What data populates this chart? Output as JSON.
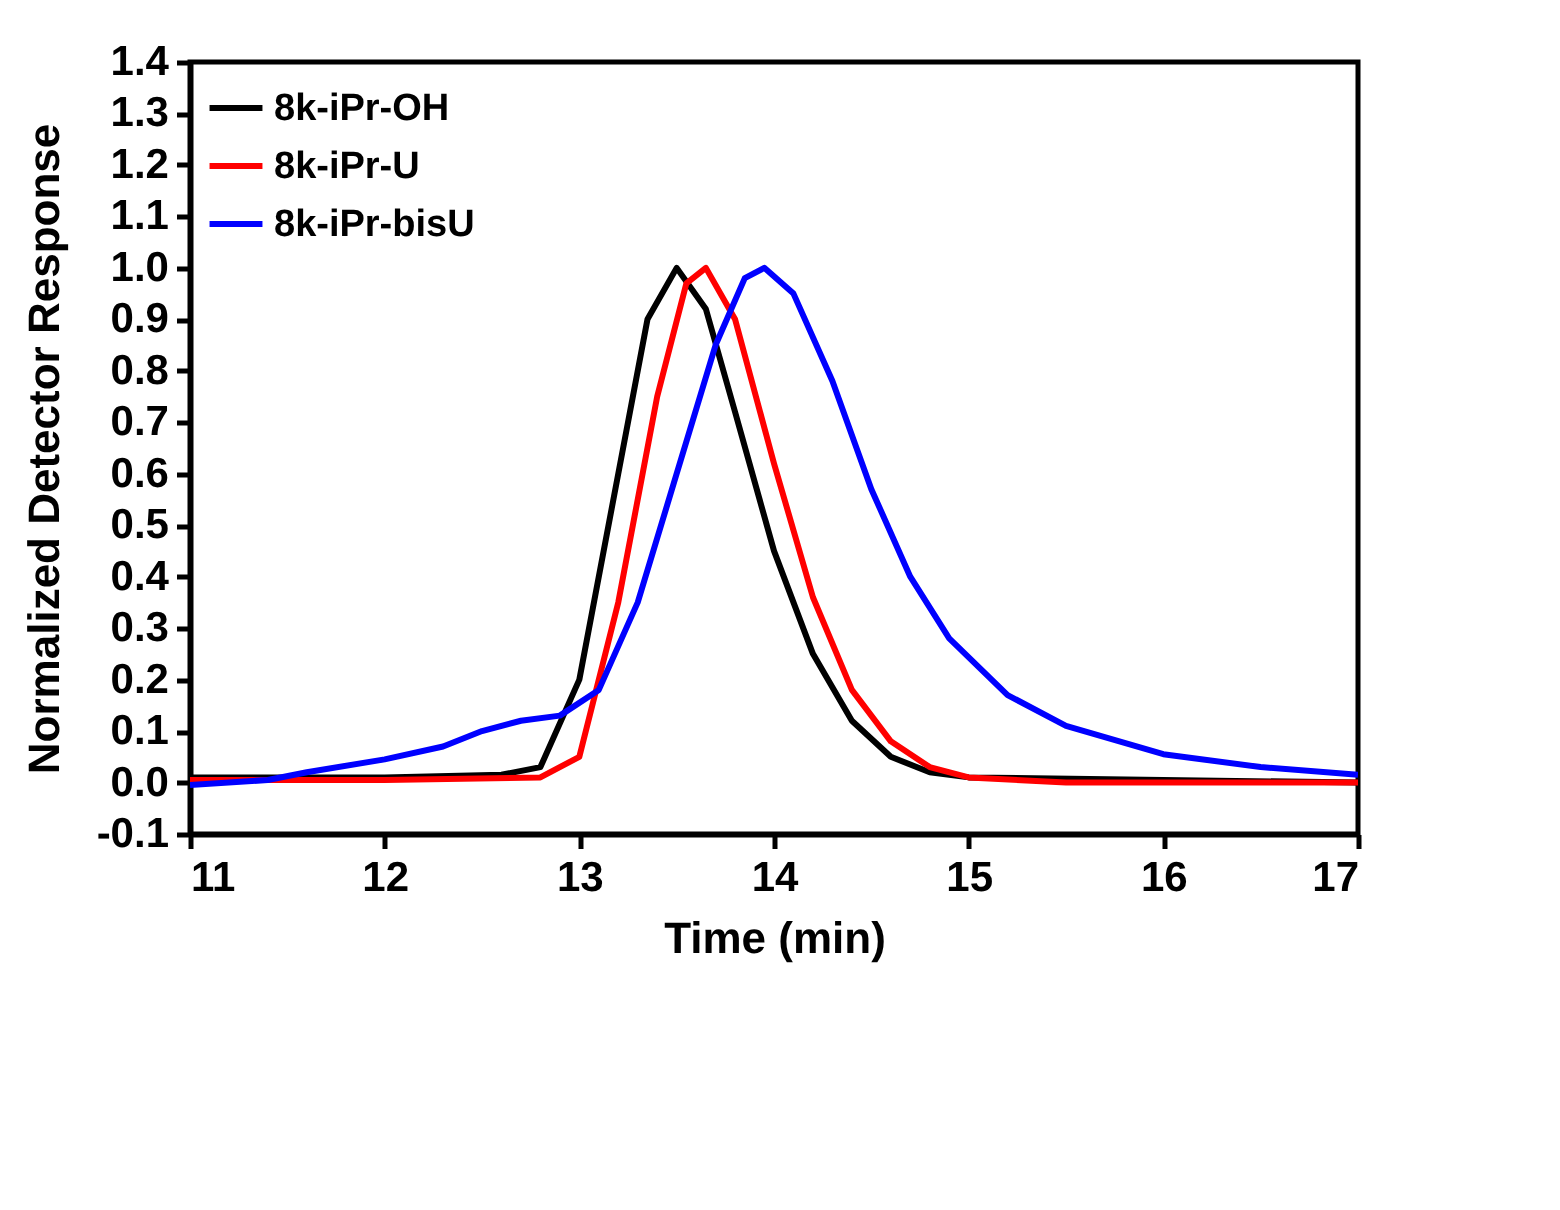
{
  "chart_data": {
    "type": "line",
    "xlabel": "Time (min)",
    "ylabel": "Normalized Detector Response",
    "xlim": [
      11,
      17
    ],
    "ylim": [
      -0.1,
      1.4
    ],
    "xticks": [
      11,
      12,
      13,
      14,
      15,
      16,
      17
    ],
    "yticks": [
      {
        "value": -0.1,
        "label": "-0.1"
      },
      {
        "value": 0,
        "label": "0.0"
      },
      {
        "value": 0.1,
        "label": "0.1"
      },
      {
        "value": 0.2,
        "label": "0.2"
      },
      {
        "value": 0.3,
        "label": "0.3"
      },
      {
        "value": 0.4,
        "label": "0.4"
      },
      {
        "value": 0.5,
        "label": "0.5"
      },
      {
        "value": 0.6,
        "label": "0.6"
      },
      {
        "value": 0.7,
        "label": "0.7"
      },
      {
        "value": 0.8,
        "label": "0.8"
      },
      {
        "value": 0.9,
        "label": "0.9"
      },
      {
        "value": 1,
        "label": "1.0"
      },
      {
        "value": 1.1,
        "label": "1.1"
      },
      {
        "value": 1.2,
        "label": "1.2"
      },
      {
        "value": 1.3,
        "label": "1.3"
      },
      {
        "value": 1.4,
        "label": "1.4"
      }
    ],
    "grid": false,
    "legend": "top left",
    "line_style": "solid",
    "marker": "none",
    "series": [
      {
        "name": "8k-iPr-OH",
        "color": "#000000",
        "x": [
          11,
          12,
          12.6,
          12.8,
          13,
          13.2,
          13.35,
          13.5,
          13.65,
          13.8,
          14,
          14.2,
          14.4,
          14.6,
          14.8,
          15,
          16,
          17
        ],
        "values": [
          0.01,
          0.01,
          0.015,
          0.03,
          0.2,
          0.6,
          0.9,
          1,
          0.92,
          0.72,
          0.45,
          0.25,
          0.12,
          0.05,
          0.02,
          0.01,
          0.005,
          0
        ]
      },
      {
        "name": "8k-iPr-U",
        "color": "#ff0000",
        "x": [
          11,
          12,
          12.8,
          13,
          13.2,
          13.4,
          13.55,
          13.65,
          13.8,
          14,
          14.2,
          14.4,
          14.6,
          14.8,
          15,
          15.5,
          17
        ],
        "values": [
          0.005,
          0.005,
          0.01,
          0.05,
          0.35,
          0.75,
          0.97,
          1,
          0.9,
          0.62,
          0.36,
          0.18,
          0.08,
          0.03,
          0.01,
          0,
          0
        ]
      },
      {
        "name": "8k-iPr-bisU",
        "color": "#0000ff",
        "x": [
          11,
          11.4,
          11.6,
          12,
          12.3,
          12.5,
          12.7,
          12.9,
          13.1,
          13.3,
          13.5,
          13.7,
          13.85,
          13.95,
          14.1,
          14.3,
          14.5,
          14.7,
          14.9,
          15.2,
          15.5,
          16,
          16.5,
          17
        ],
        "values": [
          -0.005,
          0.005,
          0.02,
          0.045,
          0.07,
          0.1,
          0.12,
          0.13,
          0.18,
          0.35,
          0.6,
          0.85,
          0.98,
          1,
          0.95,
          0.78,
          0.57,
          0.4,
          0.28,
          0.17,
          0.11,
          0.055,
          0.03,
          0.015
        ]
      }
    ]
  }
}
